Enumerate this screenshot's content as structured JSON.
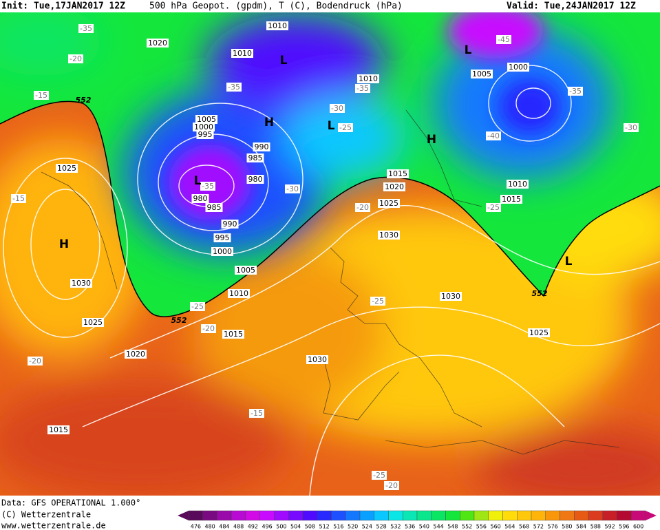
{
  "header": {
    "init": "Init: Tue,17JAN2017 12Z",
    "title": "500 hPa Geopot. (gpdm), T (C), Bodendruck (hPa)",
    "valid": "Valid: Tue,24JAN2017 12Z"
  },
  "footer": {
    "data": "Data: GFS OPERATIONAL 1.000°",
    "copyright": "(C) Wetterzentrale",
    "url": "www.wetterzentrale.de"
  },
  "colorbar": {
    "ticks": [
      476,
      480,
      484,
      488,
      492,
      496,
      500,
      504,
      508,
      512,
      516,
      520,
      524,
      528,
      532,
      536,
      540,
      544,
      548,
      552,
      556,
      560,
      564,
      568,
      572,
      576,
      580,
      584,
      588,
      592,
      596,
      600
    ],
    "colors": [
      "#5a0a5a",
      "#7a0a82",
      "#9a0aaa",
      "#b80ad2",
      "#d20ae6",
      "#c80aff",
      "#a00aff",
      "#780aff",
      "#500aff",
      "#2828ff",
      "#1e50ff",
      "#1478ff",
      "#0aa0ff",
      "#0ac8ff",
      "#0ae6e6",
      "#0ae6b4",
      "#0ae68c",
      "#0ae664",
      "#14e63c",
      "#50e614",
      "#a0e614",
      "#f0f00a",
      "#ffdc0a",
      "#ffc80a",
      "#ffb40a",
      "#fa960a",
      "#f07814",
      "#e65a14",
      "#dc3c1e",
      "#c81e28",
      "#b40a32",
      "#c80a78"
    ]
  },
  "pressure_systems": [
    "L",
    "L",
    "H",
    "L",
    "H",
    "L",
    "H",
    "L"
  ],
  "isobar_labels": [
    1010,
    1020,
    1010,
    1010,
    1005,
    1000,
    1005,
    1000,
    995,
    990,
    985,
    980,
    980,
    985,
    990,
    995,
    1000,
    1005,
    1010,
    1015,
    1020,
    1025,
    1030,
    1025,
    1015,
    1020,
    1025,
    1030,
    1030,
    1025,
    1030,
    1010,
    1015,
    1015
  ],
  "temperature_labels": [
    -35,
    -20,
    -15,
    -15,
    -35,
    -35,
    -30,
    -25,
    -30,
    -35,
    -20,
    -25,
    -40,
    -35,
    -45,
    -30,
    -25,
    -20,
    -25,
    -20,
    -15,
    -25,
    -20
  ],
  "geopotential_labels": [
    552,
    552,
    552
  ]
}
